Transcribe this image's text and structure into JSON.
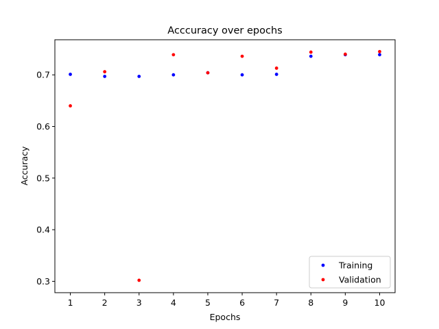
{
  "chart_data": {
    "type": "scatter",
    "title": "Acccuracy over epochs",
    "xlabel": "Epochs",
    "ylabel": "Accuracy",
    "x": [
      1,
      2,
      3,
      4,
      5,
      6,
      7,
      8,
      9,
      10
    ],
    "xticks": [
      "1",
      "2",
      "3",
      "4",
      "5",
      "6",
      "7",
      "8",
      "9",
      "10"
    ],
    "yticks": [
      "0.3",
      "0.4",
      "0.5",
      "0.6",
      "0.7"
    ],
    "ytick_values": [
      0.3,
      0.4,
      0.5,
      0.6,
      0.7
    ],
    "xlim": [
      0.55,
      10.45
    ],
    "ylim": [
      0.278,
      0.768
    ],
    "grid": false,
    "legend_position": "lower-right",
    "series": [
      {
        "name": "Training",
        "color": "#0000ff",
        "values": [
          0.701,
          0.697,
          0.697,
          0.7,
          0.704,
          0.7,
          0.701,
          0.736,
          0.739,
          0.739
        ]
      },
      {
        "name": "Validation",
        "color": "#ff0000",
        "values": [
          0.64,
          0.706,
          0.302,
          0.739,
          0.704,
          0.736,
          0.713,
          0.744,
          0.74,
          0.745
        ]
      }
    ]
  }
}
